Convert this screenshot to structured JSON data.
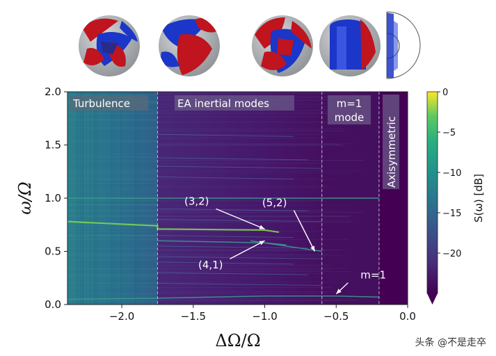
{
  "chart_data": {
    "type": "heatmap",
    "title": "",
    "xlabel": "ΔΩ/Ω",
    "ylabel": "ω/Ω",
    "xlim": [
      -2.38,
      0.0
    ],
    "ylim": [
      0.0,
      2.0
    ],
    "x_ticks": [
      "−2.0",
      "−1.5",
      "−1.0",
      "−0.5",
      "0.0"
    ],
    "x_tick_values": [
      -2.0,
      -1.5,
      -1.0,
      -0.5,
      0.0
    ],
    "y_ticks": [
      "0.0",
      "0.5",
      "1.0",
      "1.5",
      "2.0"
    ],
    "y_tick_values": [
      0.0,
      0.5,
      1.0,
      1.5,
      2.0
    ],
    "colorbar": {
      "label": "S(ω) [dB]",
      "range": [
        -25,
        0
      ],
      "ticks": [
        "0",
        "−5",
        "−10",
        "−15",
        "−20"
      ],
      "tick_values": [
        0,
        -5,
        -10,
        -15,
        -20
      ],
      "colormap": "viridis",
      "extend": "min"
    },
    "region_boundaries": [
      -1.75,
      -0.6,
      -0.2
    ],
    "regions": [
      {
        "label": "Turbulence",
        "x_start": -2.38,
        "x_end": -1.75
      },
      {
        "label": "EA inertial modes",
        "x_start": -1.75,
        "x_end": -0.6
      },
      {
        "label": "m=1 mode",
        "x_start": -0.6,
        "x_end": -0.2
      },
      {
        "label": "Axisymmetric",
        "x_start": -0.2,
        "x_end": 0.0
      }
    ],
    "region_labels": {
      "turbulence": "Turbulence",
      "ea": "EA inertial modes",
      "m1_line1": "m=1",
      "m1_line2": "mode",
      "axisymmetric": "Axisymmetric"
    },
    "mode_lines": [
      {
        "name": "ω/Ω = 1",
        "x": [
          -2.38,
          -0.2
        ],
        "y": [
          1.0,
          1.0
        ]
      },
      {
        "name": "(3,2)",
        "x": [
          -2.38,
          -1.75,
          -1.75,
          -1.0,
          -0.9
        ],
        "y": [
          0.78,
          0.74,
          0.71,
          0.7,
          0.68
        ]
      },
      {
        "name": "(4,1)",
        "x": [
          -1.75,
          -1.0,
          -0.85
        ],
        "y": [
          0.6,
          0.58,
          0.56
        ]
      },
      {
        "name": "(5,2)",
        "x": [
          -1.1,
          -0.6
        ],
        "y": [
          0.6,
          0.5
        ]
      },
      {
        "name": "m=1",
        "x": [
          -2.38,
          -1.75,
          -1.0,
          -0.5,
          -0.2
        ],
        "y": [
          0.05,
          0.06,
          0.08,
          0.08,
          0.07
        ]
      }
    ],
    "annotations": [
      {
        "text": "(3,2)",
        "points_to": {
          "x": -1.0,
          "y": 0.71
        }
      },
      {
        "text": "(4,1)",
        "points_to": {
          "x": -1.0,
          "y": 0.6
        }
      },
      {
        "text": "(5,2)",
        "points_to": {
          "x": -0.65,
          "y": 0.5
        }
      },
      {
        "text": "m=1",
        "points_to": {
          "x": -0.5,
          "y": 0.1
        }
      }
    ]
  },
  "thumbnails": [
    {
      "name": "turbulence-flow-render"
    },
    {
      "name": "ea-mode-flow-render-1"
    },
    {
      "name": "ea-mode-flow-render-2"
    },
    {
      "name": "m1-mode-flow-render"
    },
    {
      "name": "axisymmetric-flow-render"
    }
  ],
  "colors": {
    "background_dark": "#440154",
    "background_turbulence": "#2a7c8e",
    "line_bright": "#7ad151",
    "line_mid": "#3b9b8b",
    "thumb_red": "#c0141e",
    "thumb_blue": "#1b36c8",
    "thumb_gray": "#b5b8bc"
  },
  "watermark": "头条 @不是走卒"
}
